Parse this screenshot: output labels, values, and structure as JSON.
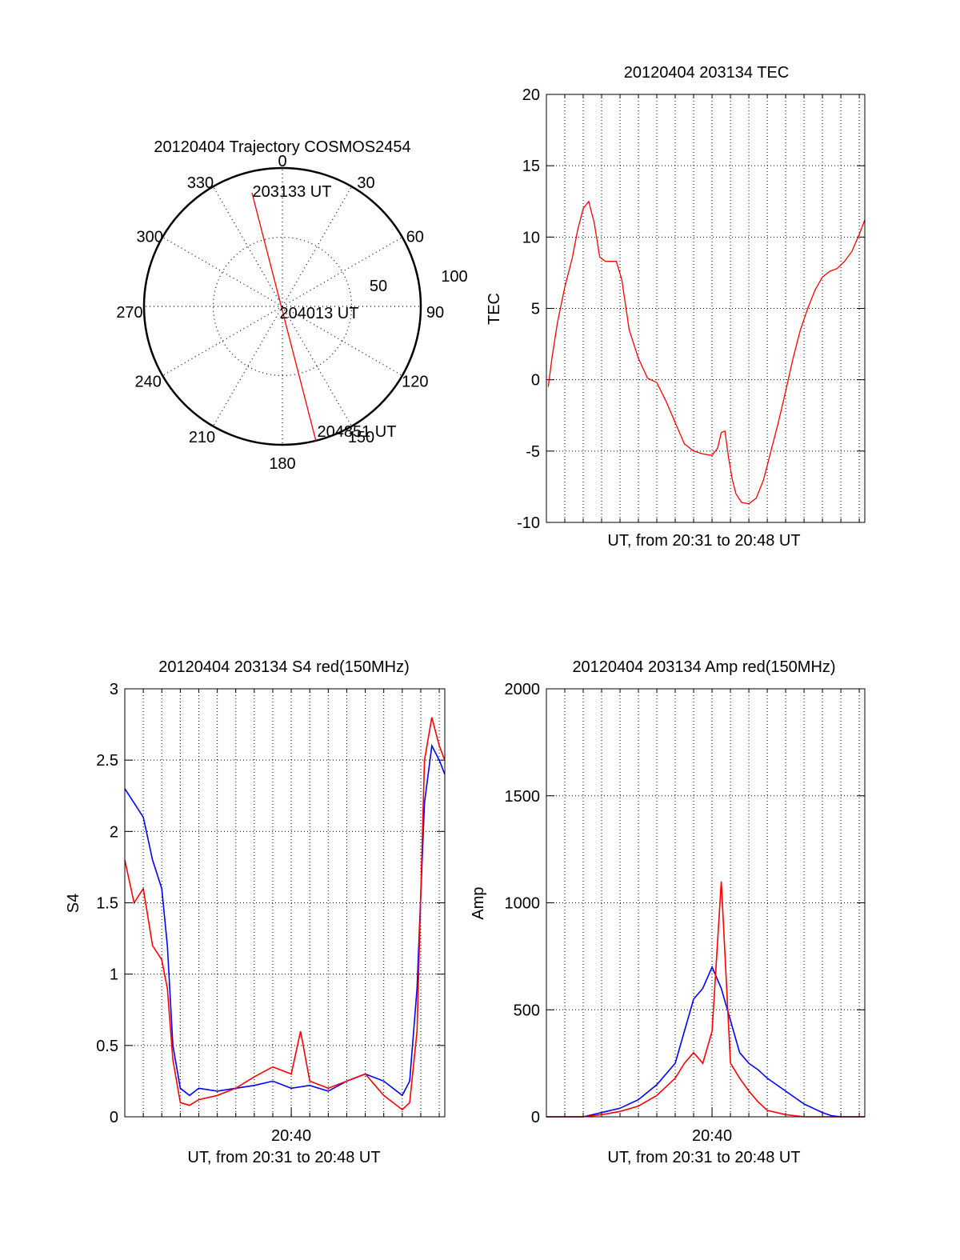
{
  "colors": {
    "red": "#ff0000",
    "blue": "#0000ff",
    "axis": "#000000",
    "grid": "#000000"
  },
  "chart_data": [
    {
      "id": "polar",
      "type": "scatter",
      "title": "20120404 Trajectory COSMOS2454",
      "projection": "polar",
      "azimuth_labels": [
        "0",
        "30",
        "60",
        "90",
        "120",
        "150",
        "180",
        "210",
        "240",
        "270",
        "300",
        "330"
      ],
      "radius_labels": [
        "50",
        "100"
      ],
      "points_labels": [
        "203133 UT",
        "204013 UT",
        "204851 UT"
      ],
      "trajectory": {
        "start": {
          "az": 345,
          "zenith": 78
        },
        "end": {
          "az": 166,
          "zenith": 92
        }
      },
      "series_color": "#ff0000"
    },
    {
      "id": "tec",
      "type": "line",
      "title": "20120404 203134 TEC",
      "xlabel": "UT, from 20:31 to 20:48 UT",
      "ylabel": "TEC",
      "xlim": [
        0,
        17.3
      ],
      "ylim": [
        -10,
        20
      ],
      "yticks": [
        "-10",
        "-5",
        "0",
        "5",
        "10",
        "15",
        "20"
      ],
      "grid": true,
      "series": [
        {
          "color": "#ff0000",
          "x": [
            0.1,
            0.3,
            0.6,
            1.0,
            1.4,
            1.7,
            2.0,
            2.3,
            2.6,
            2.9,
            3.2,
            3.5,
            3.8,
            4.1,
            4.5,
            5.0,
            5.5,
            6.0,
            6.5,
            7.0,
            7.5,
            8.0,
            8.5,
            9.0,
            9.3,
            9.5,
            9.7,
            9.9,
            10.1,
            10.3,
            10.6,
            11.0,
            11.4,
            11.8,
            12.2,
            12.6,
            13.0,
            13.4,
            13.8,
            14.2,
            14.6,
            15.0,
            15.4,
            15.8,
            16.2,
            16.6,
            17.0,
            17.3
          ],
          "y": [
            -0.5,
            1.5,
            4.0,
            6.5,
            8.5,
            10.5,
            12.0,
            12.5,
            11.0,
            8.6,
            8.3,
            8.3,
            8.3,
            7.0,
            3.5,
            1.5,
            0.1,
            -0.2,
            -1.5,
            -3.0,
            -4.5,
            -5.0,
            -5.2,
            -5.3,
            -4.8,
            -3.7,
            -3.6,
            -5.5,
            -7.0,
            -8.0,
            -8.6,
            -8.7,
            -8.3,
            -7.0,
            -5.0,
            -3.0,
            -0.8,
            1.5,
            3.5,
            5.0,
            6.3,
            7.2,
            7.6,
            7.8,
            8.3,
            9.0,
            10.2,
            11.2
          ]
        }
      ]
    },
    {
      "id": "s4",
      "type": "line",
      "title": "20120404 203134 S4 red(150MHz)",
      "xlabel": "UT, from 20:31 to 20:48 UT",
      "ylabel": "S4",
      "xlim": [
        0,
        17.3
      ],
      "ylim": [
        0,
        3
      ],
      "yticks": [
        "0",
        "0.5",
        "1",
        "1.5",
        "2",
        "2.5",
        "3"
      ],
      "xtick_label": "20:40",
      "xtick_value": 9.0,
      "grid": true,
      "series": [
        {
          "color": "#0000ff",
          "x": [
            0.0,
            0.5,
            1.0,
            1.5,
            2.0,
            2.3,
            2.6,
            3.0,
            3.5,
            4.0,
            5.0,
            6.0,
            7.0,
            8.0,
            9.0,
            10.0,
            11.0,
            12.0,
            13.0,
            14.0,
            15.0,
            15.4,
            15.8,
            16.2,
            16.6,
            17.0,
            17.3
          ],
          "y": [
            2.3,
            2.2,
            2.1,
            1.8,
            1.6,
            1.2,
            0.5,
            0.2,
            0.15,
            0.2,
            0.18,
            0.2,
            0.22,
            0.25,
            0.2,
            0.22,
            0.18,
            0.25,
            0.3,
            0.25,
            0.15,
            0.25,
            0.9,
            2.2,
            2.6,
            2.5,
            2.4
          ]
        },
        {
          "color": "#ff0000",
          "x": [
            0.0,
            0.5,
            1.0,
            1.5,
            2.0,
            2.3,
            2.6,
            3.0,
            3.5,
            4.0,
            5.0,
            6.0,
            7.0,
            8.0,
            9.0,
            9.5,
            10.0,
            11.0,
            12.0,
            13.0,
            14.0,
            15.0,
            15.4,
            15.8,
            16.2,
            16.6,
            17.0,
            17.3
          ],
          "y": [
            1.8,
            1.5,
            1.6,
            1.2,
            1.1,
            0.9,
            0.4,
            0.1,
            0.08,
            0.12,
            0.15,
            0.2,
            0.28,
            0.35,
            0.3,
            0.6,
            0.25,
            0.2,
            0.25,
            0.3,
            0.15,
            0.05,
            0.1,
            0.6,
            2.5,
            2.8,
            2.6,
            2.5
          ]
        }
      ]
    },
    {
      "id": "amp",
      "type": "line",
      "title": "20120404 203134 Amp red(150MHz)",
      "xlabel": "UT, from 20:31 to 20:48 UT",
      "ylabel": "Amp",
      "xlim": [
        0,
        17.3
      ],
      "ylim": [
        0,
        2000
      ],
      "yticks": [
        "0",
        "500",
        "1000",
        "1500",
        "2000"
      ],
      "xtick_label": "20:40",
      "xtick_value": 9.0,
      "grid": true,
      "series": [
        {
          "color": "#0000ff",
          "x": [
            0.0,
            2.0,
            3.0,
            4.0,
            5.0,
            6.0,
            7.0,
            7.5,
            8.0,
            8.5,
            9.0,
            9.5,
            10.0,
            10.5,
            11.0,
            11.5,
            12.0,
            13.0,
            14.0,
            15.0,
            15.5,
            16.0,
            17.3
          ],
          "y": [
            0,
            0,
            20,
            40,
            80,
            150,
            250,
            400,
            550,
            600,
            700,
            600,
            450,
            300,
            250,
            220,
            180,
            120,
            60,
            20,
            5,
            0,
            0
          ]
        },
        {
          "color": "#ff0000",
          "x": [
            0.0,
            2.0,
            3.0,
            4.0,
            5.0,
            6.0,
            7.0,
            7.5,
            8.0,
            8.5,
            9.0,
            9.5,
            10.0,
            10.5,
            11.0,
            11.5,
            12.0,
            13.0,
            14.0,
            15.0,
            17.3
          ],
          "y": [
            0,
            0,
            10,
            25,
            50,
            100,
            180,
            250,
            300,
            250,
            400,
            1100,
            250,
            180,
            120,
            70,
            30,
            10,
            0,
            0,
            0
          ]
        }
      ]
    }
  ]
}
